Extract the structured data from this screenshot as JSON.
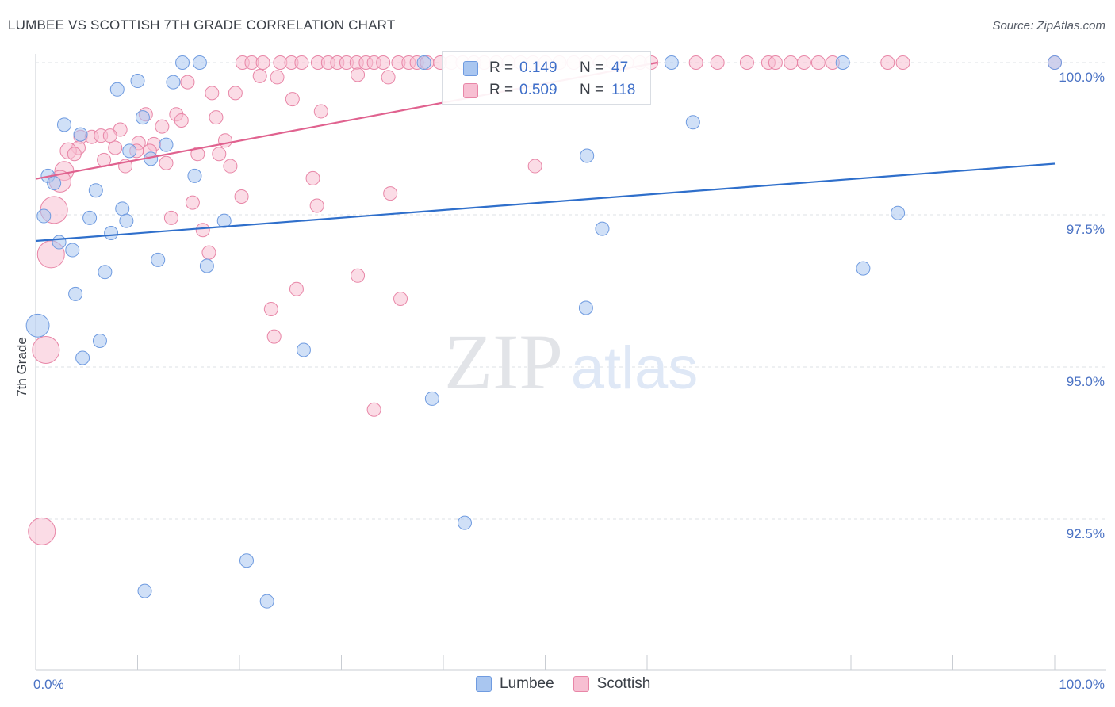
{
  "title": "LUMBEE VS SCOTTISH 7TH GRADE CORRELATION CHART",
  "source": "Source: ZipAtlas.com",
  "watermark": {
    "zip": "ZIP",
    "atlas": "atlas"
  },
  "legend": {
    "rows": [
      {
        "r_label": "R =",
        "r_value": "0.149",
        "n_label": "N =",
        "n_value": "47",
        "color": "#a9c6f0",
        "border": "#6f9be0"
      },
      {
        "r_label": "R =",
        "r_value": "0.509",
        "n_label": "N =",
        "n_value": "118",
        "color": "#f7bfd2",
        "border": "#e886a7"
      }
    ],
    "bottom": [
      "Lumbee",
      "Scottish"
    ]
  },
  "chart_data": {
    "type": "scatter",
    "title": "LUMBEE VS SCOTTISH 7TH GRADE CORRELATION CHART",
    "xlabel": "",
    "ylabel": "7th Grade",
    "xlim": [
      0,
      100
    ],
    "ylim": [
      90.8,
      100.3
    ],
    "x_tick_labels": [
      "0.0%",
      "100.0%"
    ],
    "y_ticks": [
      {
        "value": 100.0,
        "label": "100.0%"
      },
      {
        "value": 97.5,
        "label": "97.5%"
      },
      {
        "value": 95.0,
        "label": "95.0%"
      },
      {
        "value": 92.5,
        "label": "92.5%"
      }
    ],
    "grid": true,
    "legend_position": "top-center",
    "series": [
      {
        "name": "Lumbee",
        "color": "#a9c6f0",
        "stroke": "#6f9be0",
        "line_color": "#2f6fcb",
        "trend": {
          "x": [
            0,
            100
          ],
          "y": [
            97.07,
            98.34
          ]
        },
        "points": [
          {
            "x": 14.4,
            "y": 100.0,
            "s": 1
          },
          {
            "x": 16.1,
            "y": 100.0,
            "s": 1
          },
          {
            "x": 38.1,
            "y": 100.0,
            "s": 1
          },
          {
            "x": 62.4,
            "y": 100.0,
            "s": 1
          },
          {
            "x": 79.2,
            "y": 100.0,
            "s": 1
          },
          {
            "x": 100.0,
            "y": 100.0,
            "s": 1
          },
          {
            "x": 10.0,
            "y": 99.7,
            "s": 1
          },
          {
            "x": 13.5,
            "y": 99.68,
            "s": 1
          },
          {
            "x": 8.0,
            "y": 99.56,
            "s": 1
          },
          {
            "x": 10.5,
            "y": 99.1,
            "s": 1
          },
          {
            "x": 2.8,
            "y": 98.98,
            "s": 1
          },
          {
            "x": 64.5,
            "y": 99.02,
            "s": 1
          },
          {
            "x": 4.4,
            "y": 98.82,
            "s": 1
          },
          {
            "x": 12.8,
            "y": 98.65,
            "s": 1
          },
          {
            "x": 9.2,
            "y": 98.55,
            "s": 1
          },
          {
            "x": 11.3,
            "y": 98.42,
            "s": 1
          },
          {
            "x": 54.1,
            "y": 98.47,
            "s": 1
          },
          {
            "x": 1.2,
            "y": 98.14,
            "s": 1
          },
          {
            "x": 15.6,
            "y": 98.14,
            "s": 1
          },
          {
            "x": 1.8,
            "y": 98.02,
            "s": 1
          },
          {
            "x": 5.9,
            "y": 97.9,
            "s": 1
          },
          {
            "x": 8.5,
            "y": 97.6,
            "s": 1
          },
          {
            "x": 0.8,
            "y": 97.48,
            "s": 1
          },
          {
            "x": 5.3,
            "y": 97.45,
            "s": 1
          },
          {
            "x": 8.9,
            "y": 97.4,
            "s": 1
          },
          {
            "x": 18.5,
            "y": 97.4,
            "s": 1
          },
          {
            "x": 84.6,
            "y": 97.53,
            "s": 1
          },
          {
            "x": 55.6,
            "y": 97.27,
            "s": 1
          },
          {
            "x": 7.4,
            "y": 97.2,
            "s": 1
          },
          {
            "x": 2.3,
            "y": 97.05,
            "s": 1
          },
          {
            "x": 3.6,
            "y": 96.92,
            "s": 1
          },
          {
            "x": 12.0,
            "y": 96.76,
            "s": 1
          },
          {
            "x": 16.8,
            "y": 96.66,
            "s": 1
          },
          {
            "x": 6.8,
            "y": 96.56,
            "s": 1
          },
          {
            "x": 81.2,
            "y": 96.62,
            "s": 1
          },
          {
            "x": 3.9,
            "y": 96.2,
            "s": 1
          },
          {
            "x": 54.0,
            "y": 95.97,
            "s": 1
          },
          {
            "x": 0.2,
            "y": 95.68,
            "s": 1.7
          },
          {
            "x": 6.3,
            "y": 95.43,
            "s": 1
          },
          {
            "x": 26.3,
            "y": 95.28,
            "s": 1
          },
          {
            "x": 4.6,
            "y": 95.15,
            "s": 1
          },
          {
            "x": 38.9,
            "y": 94.48,
            "s": 1
          },
          {
            "x": 42.1,
            "y": 92.44,
            "s": 1
          },
          {
            "x": 20.7,
            "y": 91.82,
            "s": 1
          },
          {
            "x": 10.7,
            "y": 91.32,
            "s": 1
          },
          {
            "x": 22.7,
            "y": 91.15,
            "s": 1
          }
        ]
      },
      {
        "name": "Scottish",
        "color": "#f7bfd2",
        "stroke": "#e886a7",
        "line_color": "#e0628f",
        "trend": {
          "x": [
            0,
            61
          ],
          "y": [
            98.09,
            100.0
          ]
        },
        "points": [
          {
            "x": 20.3,
            "y": 100.0,
            "s": 1
          },
          {
            "x": 21.2,
            "y": 100.0,
            "s": 1
          },
          {
            "x": 22.3,
            "y": 100.0,
            "s": 1
          },
          {
            "x": 24.0,
            "y": 100.0,
            "s": 1
          },
          {
            "x": 25.1,
            "y": 100.0,
            "s": 1
          },
          {
            "x": 26.1,
            "y": 100.0,
            "s": 1
          },
          {
            "x": 27.7,
            "y": 100.0,
            "s": 1
          },
          {
            "x": 28.7,
            "y": 100.0,
            "s": 1
          },
          {
            "x": 29.6,
            "y": 100.0,
            "s": 1
          },
          {
            "x": 30.5,
            "y": 100.0,
            "s": 1
          },
          {
            "x": 31.5,
            "y": 100.0,
            "s": 1
          },
          {
            "x": 32.4,
            "y": 100.0,
            "s": 1
          },
          {
            "x": 33.2,
            "y": 100.0,
            "s": 1
          },
          {
            "x": 34.1,
            "y": 100.0,
            "s": 1
          },
          {
            "x": 35.6,
            "y": 100.0,
            "s": 1
          },
          {
            "x": 36.6,
            "y": 100.0,
            "s": 1
          },
          {
            "x": 37.4,
            "y": 100.0,
            "s": 1
          },
          {
            "x": 38.4,
            "y": 100.0,
            "s": 1
          },
          {
            "x": 39.7,
            "y": 100.0,
            "s": 1
          },
          {
            "x": 40.8,
            "y": 100.0,
            "s": 1
          },
          {
            "x": 41.9,
            "y": 100.0,
            "s": 1
          },
          {
            "x": 43.0,
            "y": 100.0,
            "s": 1
          },
          {
            "x": 44.0,
            "y": 100.0,
            "s": 1
          },
          {
            "x": 45.2,
            "y": 100.0,
            "s": 1
          },
          {
            "x": 46.4,
            "y": 100.0,
            "s": 1
          },
          {
            "x": 47.6,
            "y": 100.0,
            "s": 1
          },
          {
            "x": 48.8,
            "y": 100.0,
            "s": 1
          },
          {
            "x": 50.0,
            "y": 100.0,
            "s": 1
          },
          {
            "x": 51.4,
            "y": 100.0,
            "s": 1
          },
          {
            "x": 52.8,
            "y": 100.0,
            "s": 1
          },
          {
            "x": 54.0,
            "y": 100.0,
            "s": 1
          },
          {
            "x": 55.4,
            "y": 100.0,
            "s": 1
          },
          {
            "x": 56.7,
            "y": 100.0,
            "s": 1
          },
          {
            "x": 58.0,
            "y": 100.0,
            "s": 1
          },
          {
            "x": 59.3,
            "y": 100.0,
            "s": 1
          },
          {
            "x": 60.4,
            "y": 100.0,
            "s": 1
          },
          {
            "x": 64.8,
            "y": 100.0,
            "s": 1
          },
          {
            "x": 66.9,
            "y": 100.0,
            "s": 1
          },
          {
            "x": 69.8,
            "y": 100.0,
            "s": 1
          },
          {
            "x": 71.9,
            "y": 100.0,
            "s": 1
          },
          {
            "x": 72.6,
            "y": 100.0,
            "s": 1
          },
          {
            "x": 74.1,
            "y": 100.0,
            "s": 1
          },
          {
            "x": 75.4,
            "y": 100.0,
            "s": 1
          },
          {
            "x": 76.8,
            "y": 100.0,
            "s": 1
          },
          {
            "x": 78.2,
            "y": 100.0,
            "s": 1
          },
          {
            "x": 83.6,
            "y": 100.0,
            "s": 1
          },
          {
            "x": 85.1,
            "y": 100.0,
            "s": 1
          },
          {
            "x": 100.0,
            "y": 100.0,
            "s": 1
          },
          {
            "x": 22.0,
            "y": 99.78,
            "s": 1
          },
          {
            "x": 23.7,
            "y": 99.76,
            "s": 1
          },
          {
            "x": 31.6,
            "y": 99.8,
            "s": 1
          },
          {
            "x": 34.6,
            "y": 99.76,
            "s": 1
          },
          {
            "x": 14.9,
            "y": 99.68,
            "s": 1
          },
          {
            "x": 17.3,
            "y": 99.5,
            "s": 1
          },
          {
            "x": 19.6,
            "y": 99.5,
            "s": 1
          },
          {
            "x": 25.2,
            "y": 99.4,
            "s": 1
          },
          {
            "x": 28.0,
            "y": 99.2,
            "s": 1
          },
          {
            "x": 10.8,
            "y": 99.15,
            "s": 1
          },
          {
            "x": 13.8,
            "y": 99.15,
            "s": 1
          },
          {
            "x": 17.7,
            "y": 99.1,
            "s": 1
          },
          {
            "x": 14.3,
            "y": 99.05,
            "s": 1
          },
          {
            "x": 12.4,
            "y": 98.95,
            "s": 1
          },
          {
            "x": 8.3,
            "y": 98.9,
            "s": 1
          },
          {
            "x": 4.4,
            "y": 98.78,
            "s": 1
          },
          {
            "x": 5.5,
            "y": 98.78,
            "s": 1
          },
          {
            "x": 6.4,
            "y": 98.8,
            "s": 1
          },
          {
            "x": 7.3,
            "y": 98.8,
            "s": 1
          },
          {
            "x": 18.6,
            "y": 98.72,
            "s": 1
          },
          {
            "x": 10.1,
            "y": 98.68,
            "s": 1
          },
          {
            "x": 11.6,
            "y": 98.66,
            "s": 1
          },
          {
            "x": 4.2,
            "y": 98.6,
            "s": 1
          },
          {
            "x": 7.8,
            "y": 98.6,
            "s": 1
          },
          {
            "x": 3.2,
            "y": 98.55,
            "s": 1.2
          },
          {
            "x": 9.9,
            "y": 98.55,
            "s": 1
          },
          {
            "x": 11.2,
            "y": 98.55,
            "s": 1
          },
          {
            "x": 3.8,
            "y": 98.5,
            "s": 1
          },
          {
            "x": 15.9,
            "y": 98.5,
            "s": 1
          },
          {
            "x": 18.0,
            "y": 98.5,
            "s": 1
          },
          {
            "x": 6.7,
            "y": 98.4,
            "s": 1
          },
          {
            "x": 12.8,
            "y": 98.35,
            "s": 1
          },
          {
            "x": 49.0,
            "y": 98.3,
            "s": 1
          },
          {
            "x": 8.8,
            "y": 98.3,
            "s": 1
          },
          {
            "x": 19.1,
            "y": 98.3,
            "s": 1
          },
          {
            "x": 2.8,
            "y": 98.22,
            "s": 1.4
          },
          {
            "x": 27.2,
            "y": 98.1,
            "s": 1
          },
          {
            "x": 2.4,
            "y": 98.05,
            "s": 1.6
          },
          {
            "x": 34.8,
            "y": 97.85,
            "s": 1
          },
          {
            "x": 20.2,
            "y": 97.8,
            "s": 1
          },
          {
            "x": 15.4,
            "y": 97.7,
            "s": 1
          },
          {
            "x": 27.6,
            "y": 97.65,
            "s": 1
          },
          {
            "x": 1.8,
            "y": 97.58,
            "s": 2.0
          },
          {
            "x": 13.3,
            "y": 97.45,
            "s": 1
          },
          {
            "x": 16.4,
            "y": 97.25,
            "s": 1
          },
          {
            "x": 1.5,
            "y": 96.85,
            "s": 2.0
          },
          {
            "x": 17.0,
            "y": 96.88,
            "s": 1
          },
          {
            "x": 31.6,
            "y": 96.5,
            "s": 1
          },
          {
            "x": 25.6,
            "y": 96.28,
            "s": 1
          },
          {
            "x": 35.8,
            "y": 96.12,
            "s": 1
          },
          {
            "x": 23.1,
            "y": 95.95,
            "s": 1
          },
          {
            "x": 23.4,
            "y": 95.5,
            "s": 1
          },
          {
            "x": 1.0,
            "y": 95.28,
            "s": 2.0
          },
          {
            "x": 33.2,
            "y": 94.3,
            "s": 1
          },
          {
            "x": 0.6,
            "y": 92.3,
            "s": 2.0
          }
        ]
      }
    ]
  }
}
